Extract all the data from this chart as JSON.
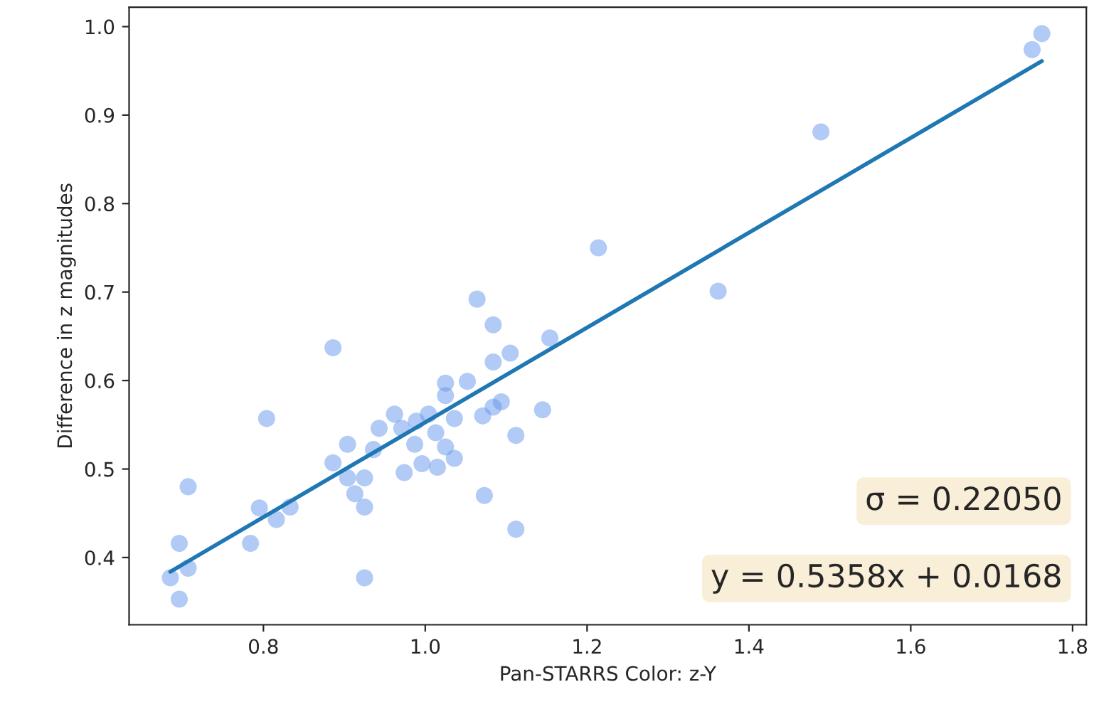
{
  "chart_data": {
    "type": "scatter",
    "xlabel": "Pan-STARRS Color: z-Y",
    "ylabel": "Difference in z magnitudes",
    "xlim": [
      0.634,
      1.817
    ],
    "ylim": [
      0.324,
      1.022
    ],
    "xticks": [
      0.8,
      {
        "value": 1,
        "label": "1.0"
      },
      1.2,
      1.4,
      1.6,
      1.8
    ],
    "yticks": [
      0.4,
      0.5,
      0.6,
      0.7,
      0.8,
      0.9,
      {
        "value": 1,
        "label": "1.0"
      }
    ],
    "grid": false,
    "marker": "circle",
    "series": [
      {
        "color": "#6495ed",
        "x": [
          0.886,
          0.804,
          0.707,
          0.696,
          0.685,
          0.696,
          0.707,
          0.784,
          0.795,
          0.816,
          0.833,
          0.925,
          0.886,
          0.904,
          0.913,
          0.925,
          0.904,
          0.943,
          0.962,
          0.936,
          0.974,
          0.925,
          1.064,
          1.084,
          1.154,
          1.105,
          1.084,
          1.025,
          1.052,
          1.025,
          1.094,
          1.084,
          1.145,
          1.004,
          1.036,
          1.071,
          0.989,
          1.013,
          1.112,
          0.971,
          0.987,
          1.025,
          1.036,
          0.996,
          1.015,
          1.073,
          1.112,
          1.762,
          1.75,
          1.489,
          1.214,
          1.362
        ],
        "values": [
          0.637,
          0.557,
          0.48,
          0.416,
          0.377,
          0.353,
          0.388,
          0.416,
          0.456,
          0.443,
          0.457,
          0.377,
          0.507,
          0.528,
          0.472,
          0.457,
          0.49,
          0.546,
          0.562,
          0.522,
          0.496,
          0.49,
          0.692,
          0.663,
          0.648,
          0.631,
          0.621,
          0.597,
          0.599,
          0.583,
          0.576,
          0.57,
          0.567,
          0.562,
          0.557,
          0.56,
          0.554,
          0.541,
          0.538,
          0.546,
          0.528,
          0.525,
          0.512,
          0.506,
          0.502,
          0.47,
          0.432,
          0.992,
          0.974,
          0.881,
          0.75,
          0.701
        ]
      },
      {
        "type": "line",
        "marker": "none",
        "color": "#1f77b4",
        "x": [
          0.685,
          1.762
        ],
        "values": [
          0.384,
          0.961
        ]
      }
    ],
    "annotations": [
      "σ = 0.22050",
      "y = 0.5358x + 0.0168"
    ]
  }
}
